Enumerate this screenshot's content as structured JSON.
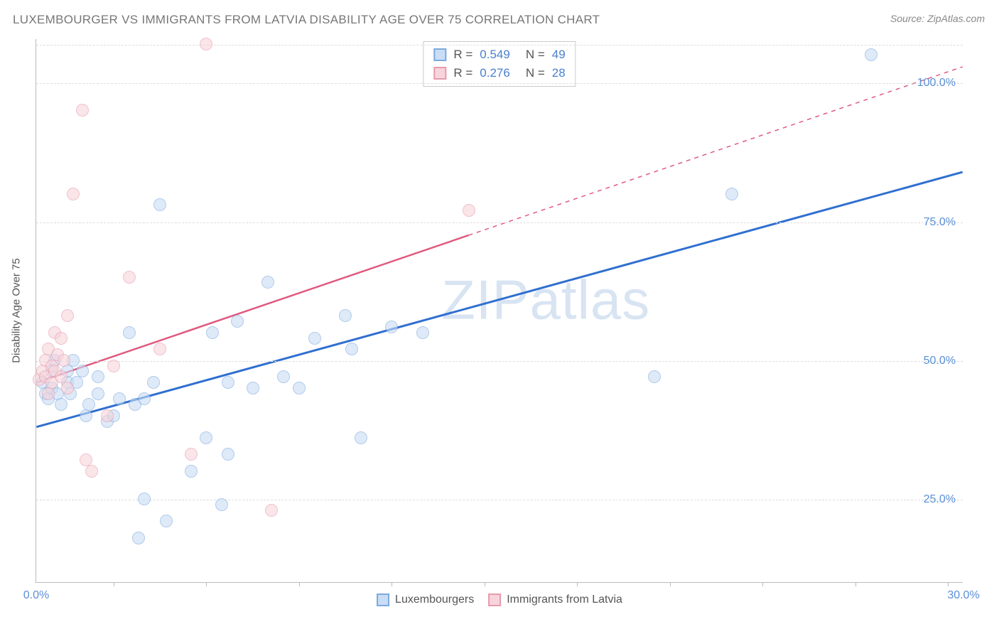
{
  "title": "LUXEMBOURGER VS IMMIGRANTS FROM LATVIA DISABILITY AGE OVER 75 CORRELATION CHART",
  "source": "Source: ZipAtlas.com",
  "watermark": "ZIPatlas",
  "ylabel": "Disability Age Over 75",
  "chart": {
    "type": "scatter",
    "xlim": [
      0,
      30
    ],
    "ylim": [
      10,
      108
    ],
    "xticks_labeled": [
      {
        "x": 0,
        "label": "0.0%"
      },
      {
        "x": 30,
        "label": "30.0%"
      }
    ],
    "xticks_minor": [
      2.5,
      5.5,
      8.5,
      11.5,
      14.5,
      17.5,
      20.5,
      23.5,
      26.5,
      29.5
    ],
    "yticks": [
      {
        "y": 25,
        "label": "25.0%"
      },
      {
        "y": 50,
        "label": "50.0%"
      },
      {
        "y": 75,
        "label": "75.0%"
      },
      {
        "y": 100,
        "label": "100.0%"
      },
      {
        "y": 107,
        "label": ""
      }
    ],
    "background": "#ffffff",
    "grid_color": "#dddddd",
    "axis_color": "#bbbbbb",
    "tick_label_color": "#5a8fd6",
    "point_radius": 9,
    "point_stroke": 1.5,
    "point_opacity": 0.6
  },
  "series": [
    {
      "name": "Luxembourgers",
      "fill": "#c9ddf4",
      "stroke": "#7da9de",
      "line_color": "#2f6fd0",
      "line_width": 3,
      "line_dash_after_x": null,
      "trend": {
        "x1": 0,
        "y1": 38,
        "x2": 30,
        "y2": 84
      },
      "R": "0.549",
      "N": "49",
      "points": [
        [
          0.2,
          46
        ],
        [
          0.3,
          44
        ],
        [
          0.4,
          43
        ],
        [
          0.5,
          48
        ],
        [
          0.5,
          45
        ],
        [
          0.6,
          50
        ],
        [
          0.7,
          44
        ],
        [
          0.8,
          42
        ],
        [
          1.0,
          46
        ],
        [
          1.0,
          48
        ],
        [
          1.1,
          44
        ],
        [
          1.2,
          50
        ],
        [
          1.3,
          46
        ],
        [
          1.5,
          48
        ],
        [
          1.6,
          40
        ],
        [
          1.7,
          42
        ],
        [
          2.0,
          44
        ],
        [
          2.0,
          47
        ],
        [
          2.3,
          39
        ],
        [
          2.5,
          40
        ],
        [
          2.7,
          43
        ],
        [
          3.0,
          55
        ],
        [
          3.2,
          42
        ],
        [
          3.5,
          43
        ],
        [
          3.8,
          46
        ],
        [
          4.0,
          78
        ],
        [
          3.3,
          18
        ],
        [
          3.5,
          25
        ],
        [
          4.2,
          21
        ],
        [
          5.0,
          30
        ],
        [
          5.5,
          36
        ],
        [
          5.7,
          55
        ],
        [
          6.0,
          24
        ],
        [
          6.2,
          33
        ],
        [
          6.5,
          57
        ],
        [
          6.2,
          46
        ],
        [
          7.0,
          45
        ],
        [
          7.5,
          64
        ],
        [
          8.0,
          47
        ],
        [
          9.0,
          54
        ],
        [
          10.0,
          58
        ],
        [
          10.2,
          52
        ],
        [
          10.5,
          36
        ],
        [
          11.5,
          56
        ],
        [
          12.5,
          55
        ],
        [
          20.0,
          47
        ],
        [
          22.5,
          80
        ],
        [
          27.0,
          105
        ],
        [
          8.5,
          45
        ]
      ]
    },
    {
      "name": "Immigrants from Latvia",
      "fill": "#f7d4db",
      "stroke": "#e79bad",
      "line_color": "#e05a7f",
      "line_width": 2.5,
      "line_dash_after_x": 14,
      "trend": {
        "x1": 0,
        "y1": 46,
        "x2": 30,
        "y2": 103
      },
      "R": "0.276",
      "N": "28",
      "points": [
        [
          0.1,
          46.5
        ],
        [
          0.2,
          48
        ],
        [
          0.3,
          47
        ],
        [
          0.3,
          50
        ],
        [
          0.4,
          44
        ],
        [
          0.4,
          52
        ],
        [
          0.5,
          49
        ],
        [
          0.5,
          46
        ],
        [
          0.6,
          48
        ],
        [
          0.6,
          55
        ],
        [
          0.7,
          51
        ],
        [
          0.8,
          47
        ],
        [
          0.8,
          54
        ],
        [
          0.9,
          50
        ],
        [
          1.0,
          58
        ],
        [
          1.0,
          45
        ],
        [
          1.2,
          80
        ],
        [
          1.5,
          95
        ],
        [
          1.6,
          32
        ],
        [
          1.8,
          30
        ],
        [
          2.3,
          40
        ],
        [
          2.5,
          49
        ],
        [
          3.0,
          65
        ],
        [
          4.0,
          52
        ],
        [
          5.0,
          33
        ],
        [
          5.5,
          107
        ],
        [
          7.6,
          23
        ],
        [
          14.0,
          77
        ]
      ]
    }
  ],
  "legend_bottom": [
    {
      "label": "Luxembourgers",
      "fill": "#c9ddf4",
      "stroke": "#7da9de"
    },
    {
      "label": "Immigrants from Latvia",
      "fill": "#f7d4db",
      "stroke": "#e79bad"
    }
  ]
}
